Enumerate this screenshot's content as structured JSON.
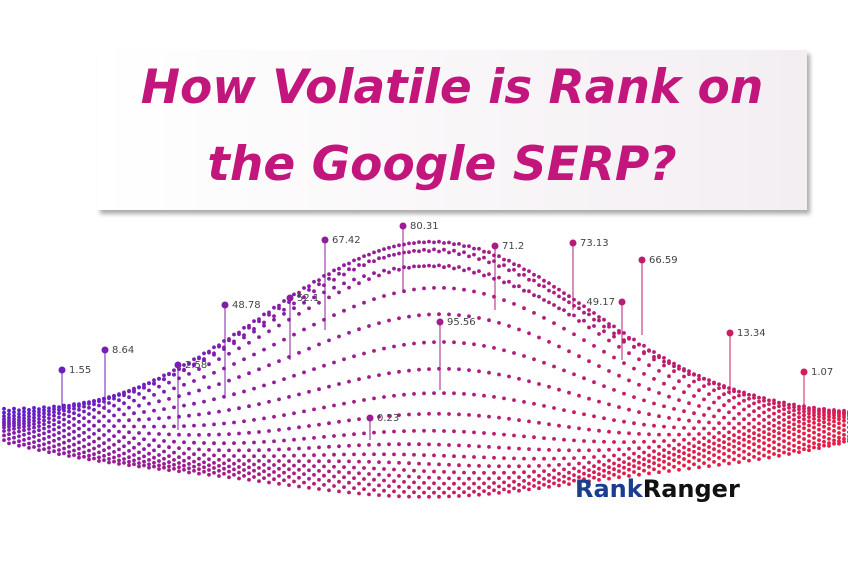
{
  "title": {
    "lines": [
      "How Volatile is Rank on",
      "the Google SERP?"
    ]
  },
  "pins": [
    1.55,
    8.64,
    2.58,
    48.78,
    52.1,
    67.42,
    80.31,
    95.56,
    0.23,
    71.2,
    73.13,
    66.59,
    49.17,
    13.34,
    1.07
  ],
  "logo": {
    "parts": [
      "Rank",
      "Ranger"
    ]
  }
}
